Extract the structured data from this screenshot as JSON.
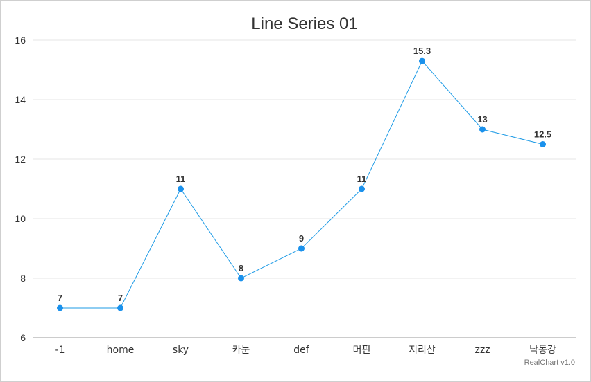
{
  "chart_data": {
    "type": "line",
    "title": "Line Series 01",
    "categories": [
      "-1",
      "home",
      "sky",
      "카눈",
      "def",
      "머핀",
      "지리산",
      "zzz",
      "낙동강"
    ],
    "series": [
      {
        "values": [
          7,
          7,
          11,
          8,
          9,
          11,
          15.3,
          13,
          12.5
        ],
        "color": "#1e9be6"
      }
    ],
    "ylim": [
      6,
      16
    ],
    "yticks": [
      6,
      8,
      10,
      12,
      14,
      16
    ],
    "grid": true,
    "data_labels": true,
    "credit": "RealChart v1.0",
    "colors": {
      "line": "#1e9be6",
      "point": "#1a91ec",
      "grid": "#e6e6e6",
      "axis": "#cccccc",
      "text": "#333333"
    }
  }
}
